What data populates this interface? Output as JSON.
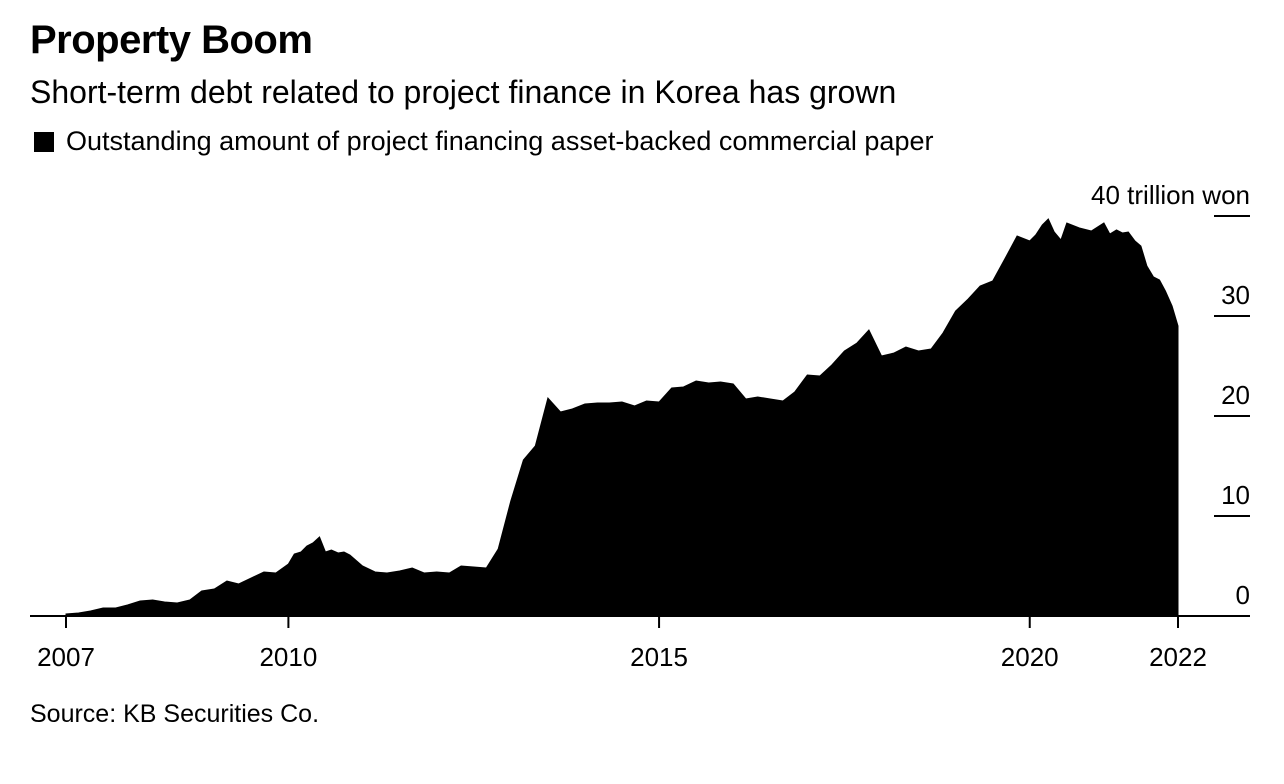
{
  "title": "Property Boom",
  "subtitle": "Short-term debt related to project finance in Korea has grown",
  "source": "Source: KB Securities Co.",
  "chart_data": {
    "type": "area",
    "legend": "Outstanding amount of project financing asset-backed commercial paper",
    "legend_placement": "top-left",
    "y_unit_label": "40 trillion won",
    "ylim": [
      0,
      40
    ],
    "yticks": [
      {
        "value": 0,
        "label": "0"
      },
      {
        "value": 10,
        "label": "10"
      },
      {
        "value": 20,
        "label": "20"
      },
      {
        "value": 30,
        "label": "30"
      },
      {
        "value": 40,
        "label": "40 trillion won"
      }
    ],
    "xlim": [
      2006.7,
      2023.0
    ],
    "xticks": [
      {
        "value": 2007,
        "label": "2007"
      },
      {
        "value": 2010,
        "label": "2010"
      },
      {
        "value": 2015,
        "label": "2015"
      },
      {
        "value": 2020,
        "label": "2020"
      },
      {
        "value": 2022,
        "label": "2022"
      }
    ],
    "grid": false,
    "color": "#000000",
    "x": [
      2007.0,
      2007.17,
      2007.33,
      2007.5,
      2007.67,
      2007.83,
      2008.0,
      2008.17,
      2008.33,
      2008.5,
      2008.67,
      2008.83,
      2009.0,
      2009.17,
      2009.33,
      2009.5,
      2009.67,
      2009.83,
      2010.0,
      2010.08,
      2010.17,
      2010.25,
      2010.33,
      2010.42,
      2010.5,
      2010.58,
      2010.67,
      2010.75,
      2010.83,
      2011.0,
      2011.17,
      2011.33,
      2011.5,
      2011.67,
      2011.83,
      2012.0,
      2012.17,
      2012.33,
      2012.5,
      2012.67,
      2012.83,
      2013.0,
      2013.17,
      2013.33,
      2013.5,
      2013.67,
      2013.83,
      2014.0,
      2014.17,
      2014.33,
      2014.5,
      2014.67,
      2014.83,
      2015.0,
      2015.17,
      2015.33,
      2015.5,
      2015.67,
      2015.83,
      2016.0,
      2016.17,
      2016.33,
      2016.5,
      2016.67,
      2016.83,
      2017.0,
      2017.17,
      2017.33,
      2017.5,
      2017.67,
      2017.83,
      2018.0,
      2018.17,
      2018.33,
      2018.5,
      2018.67,
      2018.83,
      2019.0,
      2019.17,
      2019.33,
      2019.5,
      2019.67,
      2019.83,
      2020.0,
      2020.08,
      2020.17,
      2020.25,
      2020.33,
      2020.42,
      2020.5,
      2020.67,
      2020.83,
      2021.0,
      2021.08,
      2021.17,
      2021.25,
      2021.33,
      2021.42,
      2021.5,
      2021.58,
      2021.67,
      2021.75,
      2021.83,
      2021.92,
      2022.0
    ],
    "values": [
      0.2,
      0.3,
      0.5,
      0.8,
      0.8,
      1.1,
      1.5,
      1.6,
      1.4,
      1.3,
      1.6,
      2.5,
      2.7,
      3.5,
      3.2,
      3.8,
      4.4,
      4.3,
      5.2,
      6.2,
      6.4,
      7.0,
      7.3,
      7.9,
      6.4,
      6.6,
      6.3,
      6.4,
      6.1,
      5.0,
      4.4,
      4.3,
      4.5,
      4.8,
      4.3,
      4.4,
      4.3,
      5.0,
      4.9,
      4.8,
      6.7,
      11.5,
      15.6,
      17.0,
      21.8,
      20.4,
      20.7,
      21.2,
      21.3,
      21.3,
      21.4,
      21.0,
      21.5,
      21.4,
      22.8,
      22.9,
      23.5,
      23.3,
      23.4,
      23.2,
      21.7,
      21.9,
      21.7,
      21.5,
      22.4,
      24.1,
      24.0,
      25.1,
      26.5,
      27.3,
      28.6,
      26.0,
      26.3,
      26.9,
      26.5,
      26.7,
      28.3,
      30.5,
      31.7,
      33.0,
      33.5,
      35.8,
      38.0,
      37.5,
      38.1,
      39.1,
      39.7,
      38.4,
      37.6,
      39.3,
      38.8,
      38.5,
      39.3,
      38.2,
      38.6,
      38.3,
      38.4,
      37.5,
      37.0,
      35.0,
      33.9,
      33.6,
      32.5,
      31.0,
      29.0
    ]
  }
}
